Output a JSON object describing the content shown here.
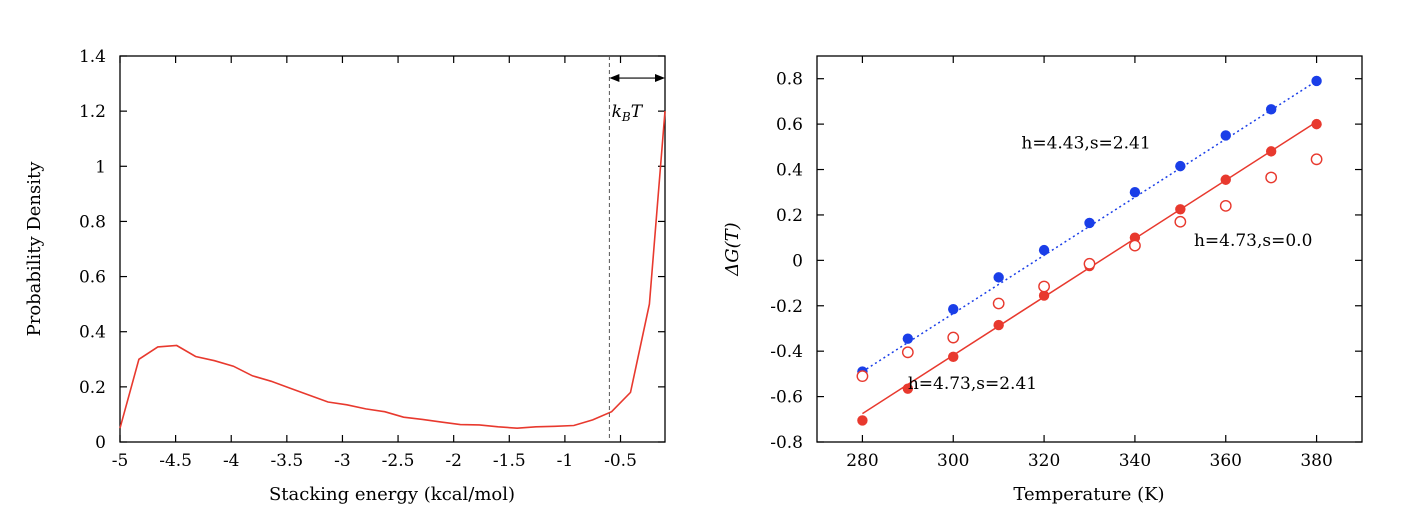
{
  "chart_data": [
    {
      "type": "line",
      "xlabel": "Stacking energy (kcal/mol)",
      "ylabel": "Probability Density",
      "xlim": [
        -5,
        -0.1
      ],
      "ylim": [
        0,
        1.4
      ],
      "xticks": [
        -5,
        -4.5,
        -4,
        -3.5,
        -3,
        -2.5,
        -2,
        -1.5,
        -1,
        -0.5
      ],
      "xtick_labels": [
        "-5",
        "-4.5",
        "-4",
        "-3.5",
        "-3",
        "-2.5",
        "-2",
        "-1.5",
        "-1",
        "-0.5"
      ],
      "yticks": [
        0,
        0.2,
        0.4,
        0.6,
        0.8,
        1,
        1.2,
        1.4
      ],
      "ytick_labels": [
        "0",
        "0.2",
        "0.4",
        "0.6",
        "0.8",
        "1",
        "1.2",
        "1.4"
      ],
      "grid": false,
      "series": [
        {
          "color": "#e8392e",
          "x": [
            -5.0,
            -4.83,
            -4.66,
            -4.49,
            -4.32,
            -4.15,
            -3.98,
            -3.81,
            -3.64,
            -3.47,
            -3.3,
            -3.13,
            -2.96,
            -2.79,
            -2.62,
            -2.45,
            -2.28,
            -2.11,
            -1.94,
            -1.77,
            -1.6,
            -1.43,
            -1.26,
            -1.09,
            -0.92,
            -0.75,
            -0.58,
            -0.41,
            -0.24,
            -0.1
          ],
          "y": [
            0.05,
            0.3,
            0.345,
            0.35,
            0.31,
            0.295,
            0.275,
            0.24,
            0.22,
            0.195,
            0.17,
            0.145,
            0.135,
            0.12,
            0.11,
            0.09,
            0.082,
            0.072,
            0.063,
            0.062,
            0.055,
            0.05,
            0.055,
            0.057,
            0.06,
            0.08,
            0.11,
            0.18,
            0.5,
            1.2
          ]
        }
      ],
      "annotations": [
        {
          "type": "vline",
          "x": -0.6,
          "style": "dashed",
          "color": "#555555"
        },
        {
          "type": "double-arrow",
          "x1": -0.6,
          "x2": -0.1,
          "y": 1.32
        },
        {
          "type": "label",
          "text": "k_BT",
          "x": -0.58,
          "y": 1.2
        }
      ]
    },
    {
      "type": "scatter",
      "xlabel": "Temperature (K)",
      "ylabel": "ΔG(T)",
      "xlim": [
        270,
        390
      ],
      "ylim": [
        -0.8,
        0.9
      ],
      "xticks": [
        280,
        300,
        320,
        340,
        360,
        380
      ],
      "xtick_labels": [
        "280",
        "300",
        "320",
        "340",
        "360",
        "380"
      ],
      "yticks": [
        -0.8,
        -0.6,
        -0.4,
        -0.2,
        0,
        0.2,
        0.4,
        0.6,
        0.8
      ],
      "ytick_labels": [
        "-0.8",
        "-0.6",
        "-0.4",
        "-0.2",
        "0",
        "0.2",
        "0.4",
        "0.6",
        "0.8"
      ],
      "grid": false,
      "series": [
        {
          "color": "#1a3ee8",
          "marker": "filled-circle",
          "fit_line": {
            "style": "dotted",
            "x": [
              280,
              380
            ],
            "y": [
              -0.49,
              0.79
            ]
          },
          "x": [
            280,
            290,
            300,
            310,
            320,
            330,
            340,
            350,
            360,
            370,
            380
          ],
          "y": [
            -0.49,
            -0.345,
            -0.215,
            -0.075,
            0.045,
            0.165,
            0.3,
            0.415,
            0.55,
            0.665,
            0.79
          ]
        },
        {
          "color": "#e8392e",
          "marker": "filled-circle",
          "fit_line": {
            "style": "solid",
            "x": [
              280,
              380
            ],
            "y": [
              -0.675,
              0.61
            ]
          },
          "x": [
            280,
            290,
            300,
            310,
            320,
            330,
            340,
            350,
            360,
            370,
            380
          ],
          "y": [
            -0.705,
            -0.565,
            -0.425,
            -0.285,
            -0.155,
            -0.025,
            0.1,
            0.225,
            0.355,
            0.48,
            0.6
          ]
        },
        {
          "color": "#e8392e",
          "marker": "open-circle",
          "x": [
            280,
            290,
            300,
            310,
            320,
            330,
            340,
            350,
            360,
            370,
            380
          ],
          "y": [
            -0.51,
            -0.405,
            -0.34,
            -0.19,
            -0.115,
            -0.015,
            0.065,
            0.17,
            0.24,
            0.365,
            0.445
          ]
        }
      ],
      "annotations": [
        {
          "text": "h=4.43,s=2.41",
          "x": 315,
          "y": 0.52
        },
        {
          "text": "h=4.73,s=0.0",
          "x": 353,
          "y": 0.09
        },
        {
          "text": "h=4.73,s=2.41",
          "x": 290,
          "y": -0.54
        }
      ]
    }
  ]
}
